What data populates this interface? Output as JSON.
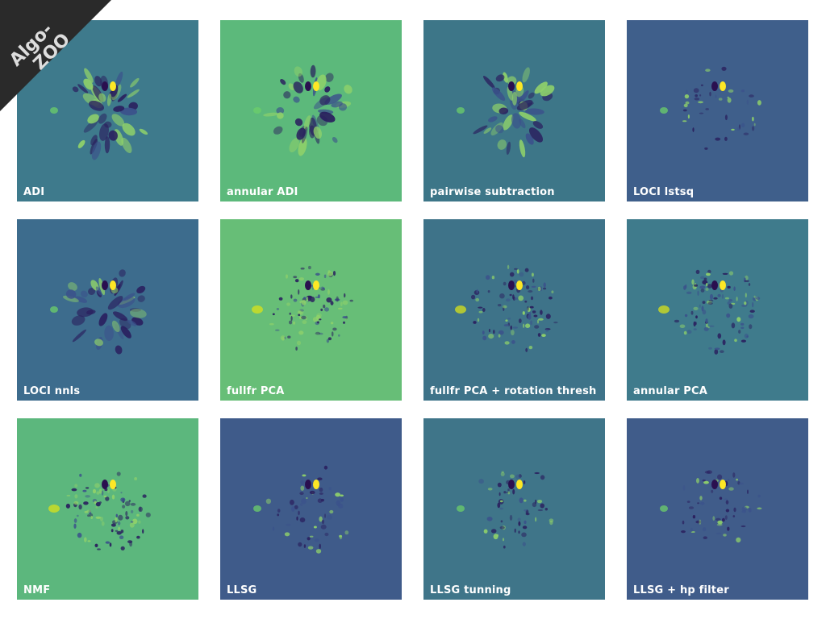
{
  "figure": {
    "panels": [
      {
        "id": "adi",
        "label": "ADI",
        "bg": "#3e7a8c",
        "style": "adi"
      },
      {
        "id": "annular-adi",
        "label": "annular ADI",
        "bg": "#5cb97b",
        "style": "adi"
      },
      {
        "id": "pairwise",
        "label": "pairwise subtraction",
        "bg": "#3d7688",
        "style": "adi"
      },
      {
        "id": "loci-lstsq",
        "label": "LOCI lstsq",
        "bg": "#3f5f8b",
        "style": "loci"
      },
      {
        "id": "loci-nnls",
        "label": "LOCI nnls",
        "bg": "#3d6c8d",
        "style": "adi"
      },
      {
        "id": "fullfr-pca",
        "label": "fullfr PCA",
        "bg": "#67be77",
        "style": "pca"
      },
      {
        "id": "fullfr-pca-thresh",
        "label": "fullfr PCA + rotation thresh",
        "bg": "#3e7389",
        "style": "pca"
      },
      {
        "id": "annular-pca",
        "label": "annular PCA",
        "bg": "#3f7b8c",
        "style": "pca"
      },
      {
        "id": "nmf",
        "label": "NMF",
        "bg": "#5cb77d",
        "style": "pca"
      },
      {
        "id": "llsg",
        "label": "LLSG",
        "bg": "#3f5b8a",
        "style": "llsg"
      },
      {
        "id": "llsg-tunning",
        "label": "LLSG tunning",
        "bg": "#3f7589",
        "style": "llsg"
      },
      {
        "id": "llsg-hp",
        "label": "LLSG + hp filter",
        "bg": "#405c8a",
        "style": "llsg"
      }
    ]
  },
  "banner": {
    "line1": "Algo-",
    "line2": "ZOO",
    "bg": "#2a2a2a",
    "text_color": "#dddddd"
  }
}
